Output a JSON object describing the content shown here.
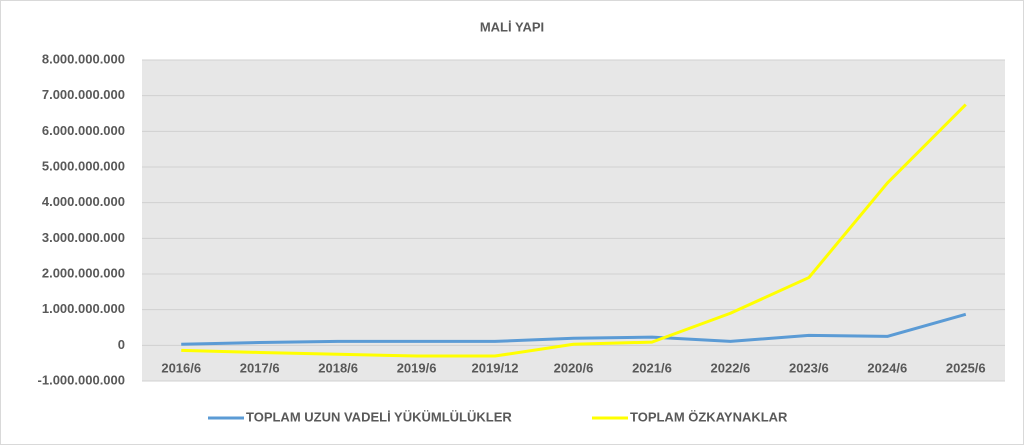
{
  "chart_data": {
    "type": "line",
    "title": "MALİ YAPI",
    "categories": [
      "2016/6",
      "2017/6",
      "2018/6",
      "2019/6",
      "2019/12",
      "2020/6",
      "2021/6",
      "2022/6",
      "2023/6",
      "2024/6",
      "2025/6"
    ],
    "series": [
      {
        "name": "TOPLAM UZUN VADELİ YÜKÜMLÜLÜKLER",
        "color": "#5b9bd5",
        "values": [
          30000000,
          80000000,
          110000000,
          110000000,
          110000000,
          200000000,
          230000000,
          110000000,
          280000000,
          250000000,
          870000000
        ]
      },
      {
        "name": "TOPLAM ÖZKAYNAKLAR",
        "color": "#ffff00",
        "values": [
          -140000000,
          -200000000,
          -250000000,
          -300000000,
          -300000000,
          30000000,
          90000000,
          900000000,
          1900000000,
          4550000000,
          6750000000
        ]
      }
    ],
    "ylim": [
      -1000000000,
      8000000000
    ],
    "yticks": [
      {
        "value": -1000000000,
        "label": "-1.000.000.000"
      },
      0,
      {
        "value": 1000000000,
        "label": "1.000.000.000"
      },
      {
        "value": 2000000000,
        "label": "2.000.000.000"
      },
      {
        "value": 3000000000,
        "label": "3.000.000.000"
      },
      {
        "value": 4000000000,
        "label": "4.000.000.000"
      },
      {
        "value": 5000000000,
        "label": "5.000.000.000"
      },
      {
        "value": 6000000000,
        "label": "6.000.000.000"
      },
      {
        "value": 7000000000,
        "label": "7.000.000.000"
      },
      {
        "value": 8000000000,
        "label": "8.000.000.000"
      }
    ],
    "grid": true,
    "legend": "bottom",
    "plot_background": "#e7e7e7"
  }
}
